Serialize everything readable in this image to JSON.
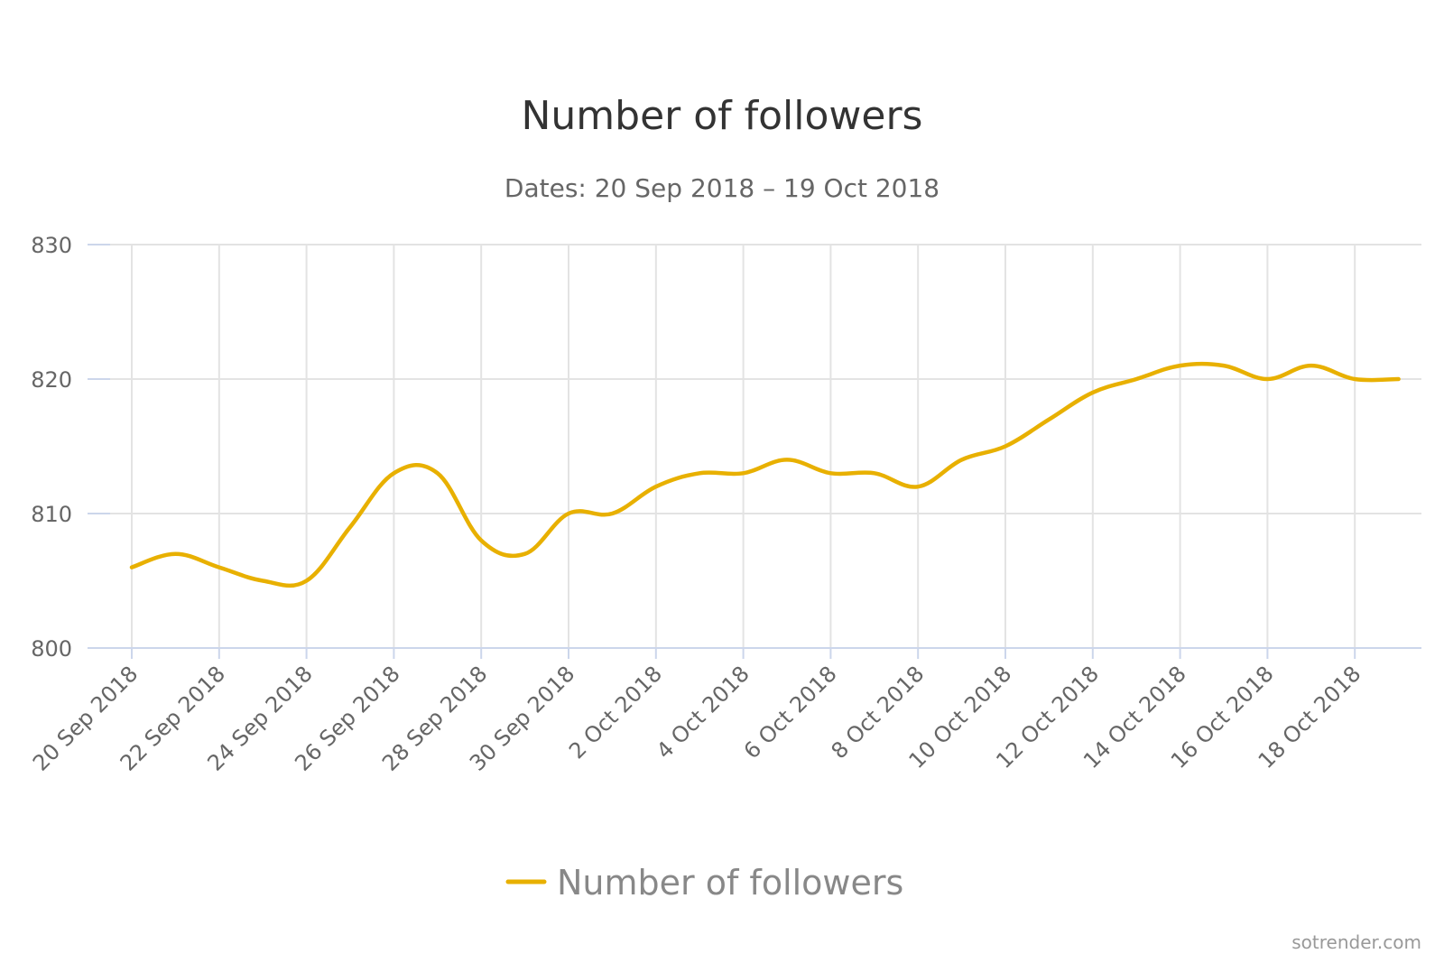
{
  "chart_data": {
    "type": "line",
    "title": "Number of followers",
    "subtitle": "Dates: 20 Sep 2018 – 19 Oct 2018",
    "xlabel": "",
    "ylabel": "",
    "ylim": [
      800,
      830
    ],
    "y_ticks": [
      800,
      810,
      820,
      830
    ],
    "x": [
      "20 Sep 2018",
      "21 Sep 2018",
      "22 Sep 2018",
      "23 Sep 2018",
      "24 Sep 2018",
      "25 Sep 2018",
      "26 Sep 2018",
      "27 Sep 2018",
      "28 Sep 2018",
      "29 Sep 2018",
      "30 Sep 2018",
      "1 Oct 2018",
      "2 Oct 2018",
      "3 Oct 2018",
      "4 Oct 2018",
      "5 Oct 2018",
      "6 Oct 2018",
      "7 Oct 2018",
      "8 Oct 2018",
      "9 Oct 2018",
      "10 Oct 2018",
      "11 Oct 2018",
      "12 Oct 2018",
      "13 Oct 2018",
      "14 Oct 2018",
      "15 Oct 2018",
      "16 Oct 2018",
      "17 Oct 2018",
      "18 Oct 2018",
      "19 Oct 2018"
    ],
    "x_tick_labels": [
      "20 Sep 2018",
      "22 Sep 2018",
      "24 Sep 2018",
      "26 Sep 2018",
      "28 Sep 2018",
      "30 Sep 2018",
      "2 Oct 2018",
      "4 Oct 2018",
      "6 Oct 2018",
      "8 Oct 2018",
      "10 Oct 2018",
      "12 Oct 2018",
      "14 Oct 2018",
      "16 Oct 2018",
      "18 Oct 2018"
    ],
    "series": [
      {
        "name": "Number of followers",
        "color": "#e8b000",
        "values": [
          806,
          807,
          806,
          805,
          805,
          809,
          813,
          813,
          808,
          807,
          810,
          810,
          812,
          813,
          813,
          814,
          813,
          813,
          812,
          814,
          815,
          817,
          819,
          820,
          821,
          821,
          820,
          821,
          820,
          820
        ]
      }
    ],
    "grid": true,
    "legend_position": "bottom-center"
  },
  "credit": "sotrender.com"
}
